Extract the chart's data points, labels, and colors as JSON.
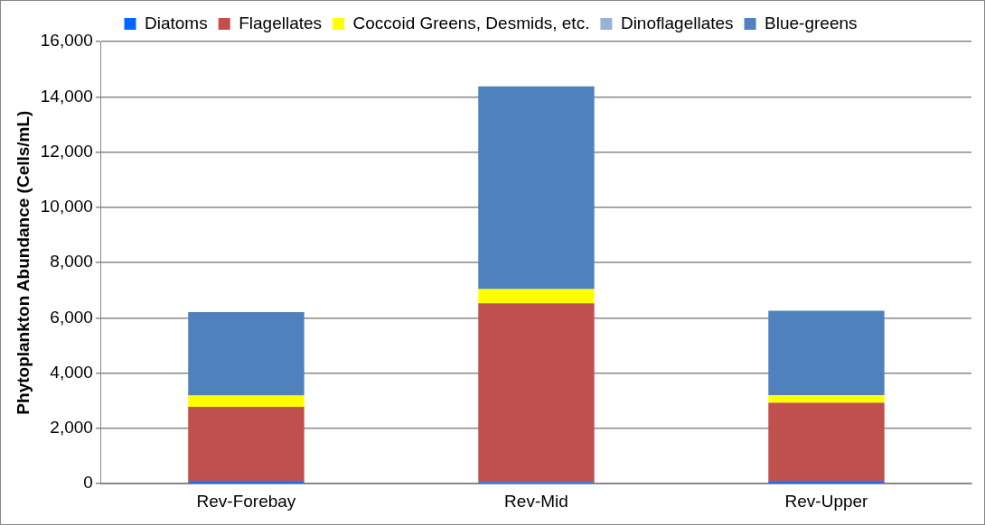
{
  "chart_data": {
    "type": "bar",
    "stacked": true,
    "ylabel": "Phytoplankton Abundance (Cells/mL)",
    "categories": [
      "Rev-Forebay",
      "Rev-Mid",
      "Rev-Upper"
    ],
    "series": [
      {
        "name": "Diatoms",
        "color": "#0066ff",
        "values": [
          100,
          60,
          100
        ]
      },
      {
        "name": "Flagellates",
        "color": "#c0504d",
        "values": [
          2680,
          6470,
          2830
        ]
      },
      {
        "name": "Coccoid Greens, Desmids, etc.",
        "color": "#ffff00",
        "values": [
          410,
          510,
          270
        ]
      },
      {
        "name": "Dinoflagellates",
        "color": "#95b3d7",
        "values": [
          null,
          null,
          null
        ]
      },
      {
        "name": "Blue-greens",
        "color": "#4f81bd",
        "values": [
          3020,
          7340,
          3060
        ]
      }
    ],
    "ylim": [
      0,
      16000
    ],
    "yticks": [
      0,
      {
        "value": 2000,
        "label": "2,000"
      },
      {
        "value": 4000,
        "label": "4,000"
      },
      {
        "value": 6000,
        "label": "6,000"
      },
      {
        "value": 8000,
        "label": "8,000"
      },
      {
        "value": 10000,
        "label": "10,000"
      },
      {
        "value": 12000,
        "label": "12,000"
      },
      {
        "value": 14000,
        "label": "14,000"
      },
      {
        "value": 16000,
        "label": "16,000"
      }
    ],
    "grid": "y",
    "legend": "top"
  }
}
